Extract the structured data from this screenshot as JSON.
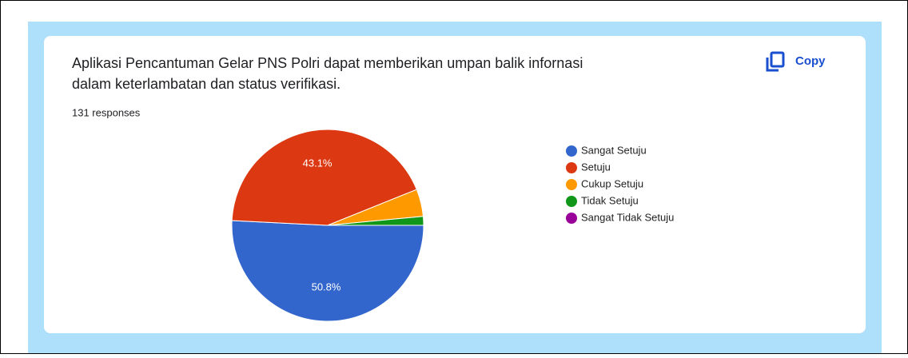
{
  "chart_data": {
    "type": "pie",
    "title": [
      "Aplikasi Pencantuman Gelar PNS Polri dapat memberikan umpan balik infornasi",
      "dalam keterlambatan dan status verifikasi."
    ],
    "subtitle": "131 responses",
    "categories": [
      "Sangat Setuju",
      "Setuju",
      "Cukup Setuju",
      "Tidak Setuju",
      "Sangat Tidak Setuju"
    ],
    "values": [
      50.8,
      43.1,
      4.6,
      1.5,
      0
    ],
    "value_labels": [
      "50.8%",
      "43.1%",
      null,
      null,
      null
    ],
    "colors": [
      "#3366cc",
      "#dc3912",
      "#ff9900",
      "#109618",
      "#990099"
    ],
    "legend": "right"
  },
  "copy_button": "Copy"
}
